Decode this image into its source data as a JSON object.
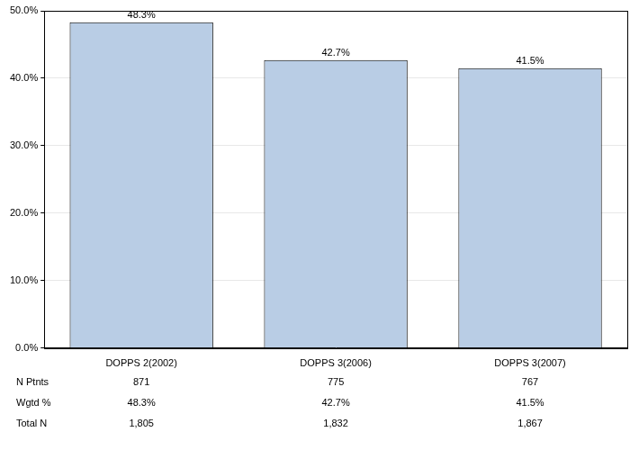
{
  "chart_data": {
    "type": "bar",
    "categories": [
      "DOPPS 2(2002)",
      "DOPPS 3(2006)",
      "DOPPS 3(2007)"
    ],
    "values": [
      48.3,
      42.7,
      41.5
    ],
    "value_labels": [
      "48.3%",
      "42.7%",
      "41.5%"
    ],
    "color": "#b9cde5",
    "ylim": [
      0,
      50
    ],
    "yticks": [
      {
        "value": 0,
        "label": "0.0%"
      },
      {
        "value": 10,
        "label": "10.0%"
      },
      {
        "value": 20,
        "label": "20.0%"
      },
      {
        "value": 30,
        "label": "30.0%"
      },
      {
        "value": 40,
        "label": "40.0%"
      },
      {
        "value": 50,
        "label": "50.0%"
      }
    ],
    "grid": true,
    "data_labels": true
  },
  "table": {
    "rows": [
      {
        "label": "N Ptnts",
        "cells": [
          "871",
          "775",
          "767"
        ]
      },
      {
        "label": "Wgtd %",
        "cells": [
          "48.3%",
          "42.7%",
          "41.5%"
        ]
      },
      {
        "label": "Total N",
        "cells": [
          "1,805",
          "1,832",
          "1,867"
        ]
      }
    ]
  }
}
